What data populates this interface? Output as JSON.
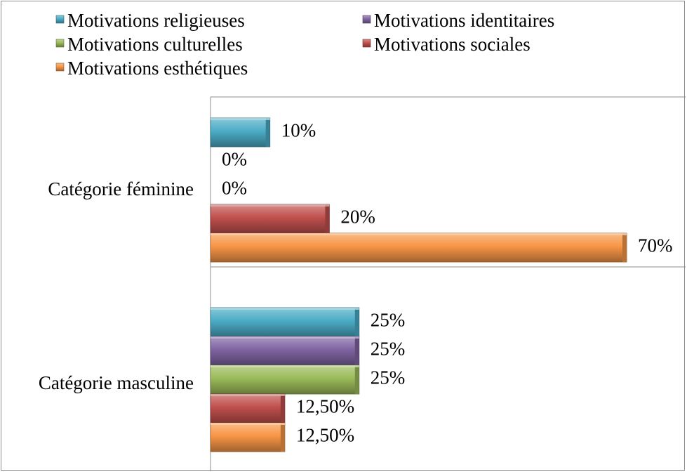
{
  "chart_data": {
    "type": "bar",
    "orientation": "horizontal",
    "categories": [
      "Catégorie féminine",
      "Catégorie masculine"
    ],
    "series": [
      {
        "name": "Motivations religieuses",
        "color": "#4bacc6",
        "values": [
          10,
          25
        ],
        "labels": [
          "10%",
          "25%"
        ]
      },
      {
        "name": "Motivations identitaires",
        "color": "#8064a2",
        "values": [
          0,
          25
        ],
        "labels": [
          "0%",
          "25%"
        ]
      },
      {
        "name": "Motivations culturelles",
        "color": "#9bbb59",
        "values": [
          0,
          25
        ],
        "labels": [
          "0%",
          "25%"
        ]
      },
      {
        "name": "Motivations sociales",
        "color": "#c0504d",
        "values": [
          20,
          12.5
        ],
        "labels": [
          "20%",
          "12,50%"
        ]
      },
      {
        "name": "Motivations esthétiques",
        "color": "#f79646",
        "values": [
          70,
          12.5
        ],
        "labels": [
          "70%",
          "12,50%"
        ]
      }
    ],
    "xlim": [
      0,
      80
    ],
    "grid": false,
    "legend_position": "top-left"
  }
}
